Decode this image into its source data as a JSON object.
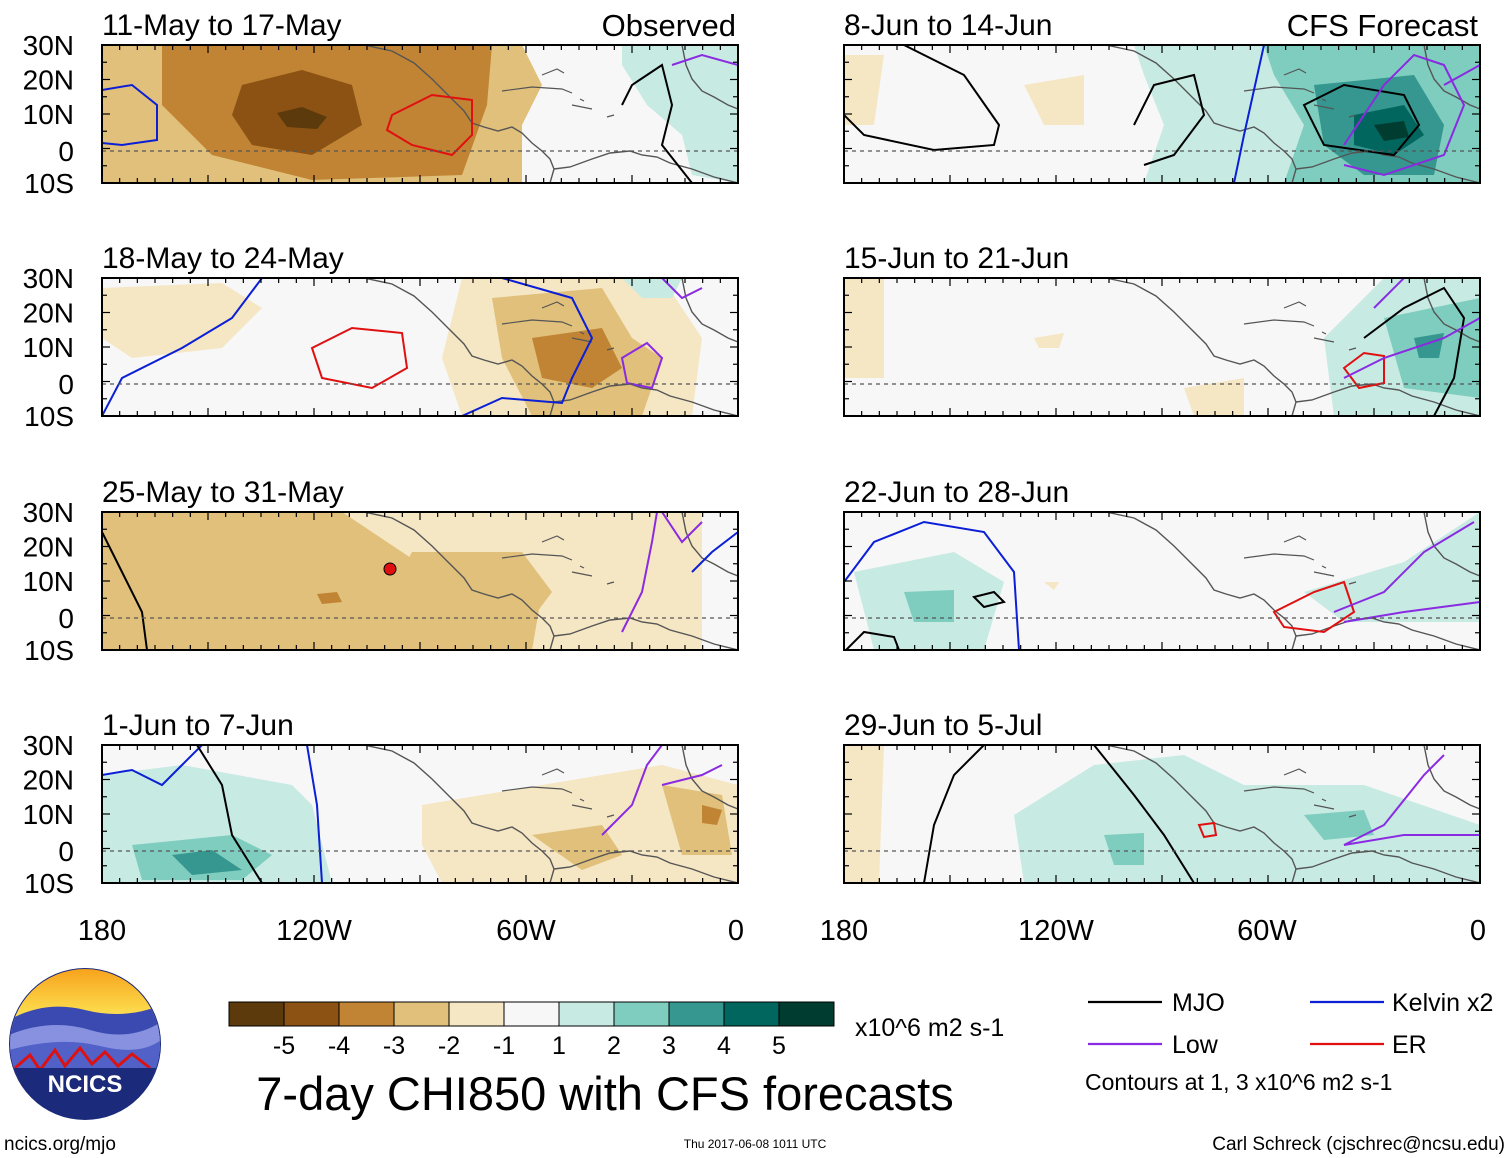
{
  "observed_label": "Observed",
  "forecast_label": "CFS Forecast",
  "lat_ticks": [
    "30N",
    "20N",
    "10N",
    "0",
    "10S"
  ],
  "lon_ticks": [
    "180",
    "120W",
    "60W",
    "0"
  ],
  "panels_left": [
    {
      "title": "11-May to 17-May"
    },
    {
      "title": "18-May to 24-May"
    },
    {
      "title": "25-May to 31-May"
    },
    {
      "title": "1-Jun to 7-Jun"
    }
  ],
  "panels_right": [
    {
      "title": "8-Jun to 14-Jun"
    },
    {
      "title": "15-Jun to 21-Jun"
    },
    {
      "title": "22-Jun to 28-Jun"
    },
    {
      "title": "29-Jun to 5-Jul"
    }
  ],
  "colorbar": {
    "colors": [
      "#5c3a0c",
      "#8b5214",
      "#c08434",
      "#e0c07a",
      "#f5e6c4",
      "#f7f7f7",
      "#c7eae2",
      "#7ecdbf",
      "#35978f",
      "#01665e",
      "#003c30"
    ],
    "labels": [
      "-5",
      "-4",
      "-3",
      "-2",
      "-1",
      "1",
      "2",
      "3",
      "4",
      "5"
    ],
    "units": "x10^6 m2 s-1"
  },
  "main_title": "7-day CHI850 with CFS forecasts",
  "legend": {
    "items": [
      {
        "label": "MJO",
        "color": "#000000"
      },
      {
        "label": "Kelvin x2",
        "color": "#0a1fd6"
      },
      {
        "label": "Low",
        "color": "#8a2be2"
      },
      {
        "label": "ER",
        "color": "#e01010"
      }
    ],
    "note": "Contours at 1, 3 x10^6 m2 s-1"
  },
  "logo_text": "NCICS",
  "footer_left": "ncics.org/mjo",
  "footer_center": "Thu 2017-06-08 1011 UTC",
  "footer_right": "Carl Schreck (cjschrec@ncsu.edu)"
}
